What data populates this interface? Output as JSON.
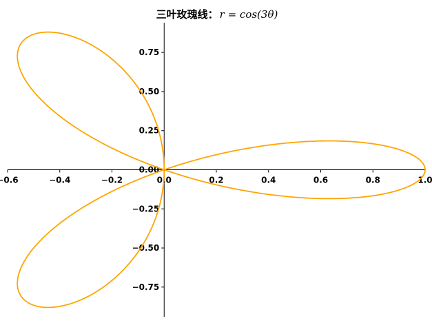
{
  "chart_data": {
    "type": "line",
    "title": "三叶玫瑰线：",
    "title_math": "r = cos(3θ)",
    "series": [
      {
        "equation": "r = cos(3θ)",
        "theta_range": [
          0,
          3.14159
        ],
        "color": "#FFA500"
      }
    ],
    "xlim": [
      -0.6,
      1.0
    ],
    "ylim": [
      -0.94,
      0.94
    ],
    "xticks": [
      -0.6,
      -0.4,
      -0.2,
      0.0,
      0.2,
      0.4,
      0.6,
      0.8,
      1.0
    ],
    "xtick_labels": [
      "−0.6",
      "−0.4",
      "−0.2",
      "0.0",
      "0.2",
      "0.4",
      "0.6",
      "0.8",
      "1.0"
    ],
    "yticks": [
      -0.75,
      -0.5,
      -0.25,
      0.0,
      0.25,
      0.5,
      0.75
    ],
    "ytick_labels": [
      "−0.75",
      "−0.50",
      "−0.25",
      "0.00",
      "0.25",
      "0.50",
      "0.75"
    ],
    "spines": "centered at origin",
    "grid": false,
    "legend": "none"
  }
}
